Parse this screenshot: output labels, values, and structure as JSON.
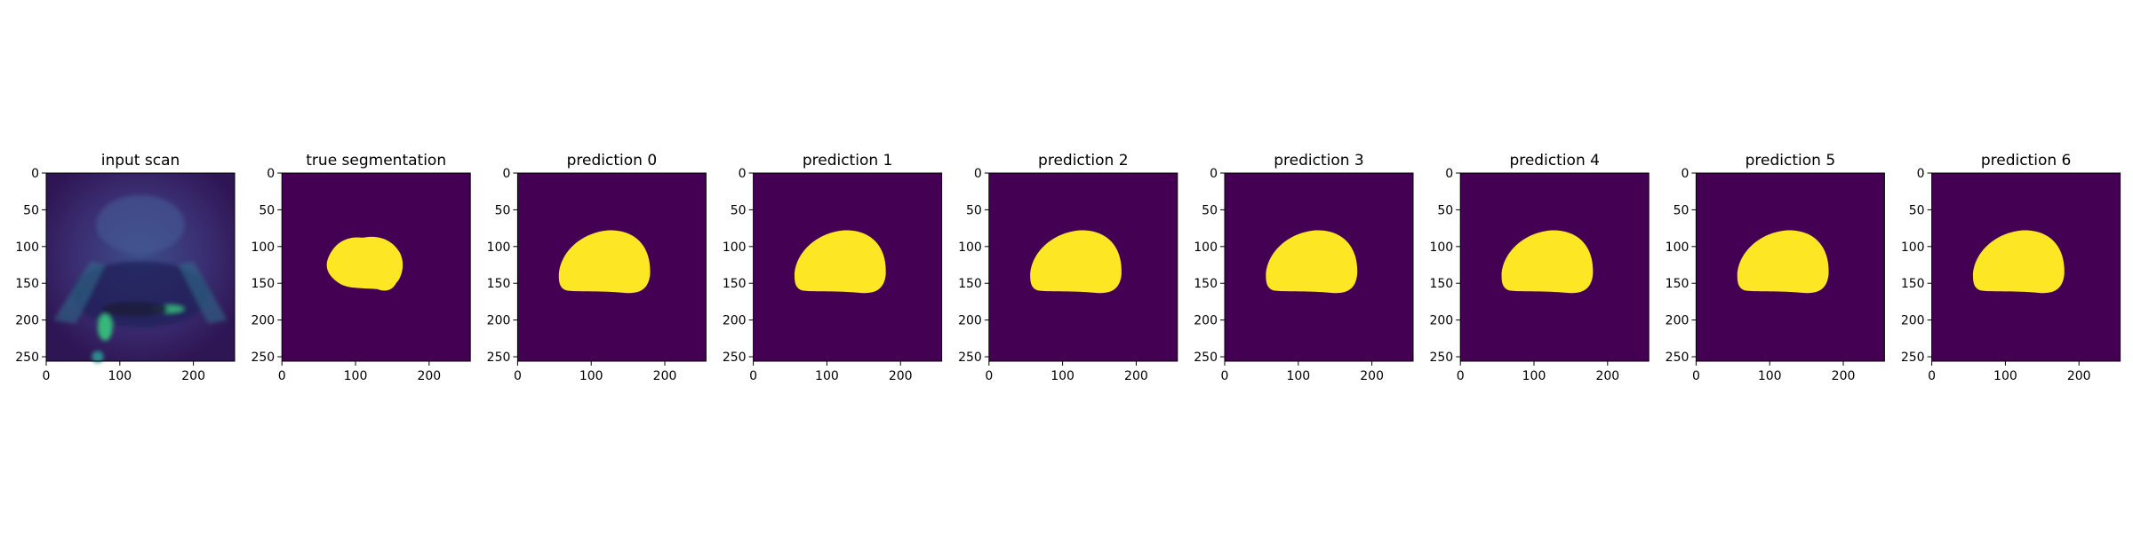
{
  "figure": {
    "panels": [
      {
        "title": "input scan",
        "kind": "scan"
      },
      {
        "title": "true segmentation",
        "kind": "mask",
        "mask": "truth"
      },
      {
        "title": "prediction 0",
        "kind": "mask",
        "mask": "pred"
      },
      {
        "title": "prediction 1",
        "kind": "mask",
        "mask": "pred"
      },
      {
        "title": "prediction 2",
        "kind": "mask",
        "mask": "pred"
      },
      {
        "title": "prediction 3",
        "kind": "mask",
        "mask": "pred"
      },
      {
        "title": "prediction 4",
        "kind": "mask",
        "mask": "pred"
      },
      {
        "title": "prediction 5",
        "kind": "mask",
        "mask": "pred"
      },
      {
        "title": "prediction 6",
        "kind": "mask",
        "mask": "pred"
      }
    ],
    "x_ticks": [
      "0",
      "100",
      "200"
    ],
    "y_ticks": [
      "0",
      "50",
      "100",
      "150",
      "200",
      "250"
    ],
    "colors": {
      "background": "#440154",
      "foreground": "#fde725",
      "scan_dark": "#3b1a5a",
      "scan_mid": "#31688e",
      "scan_bright": "#35b779"
    }
  }
}
